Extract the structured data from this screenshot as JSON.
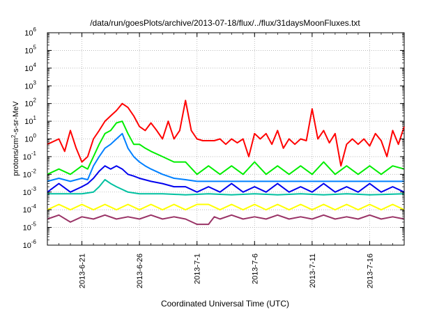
{
  "chart_data": {
    "type": "line",
    "title": "/data/run/goesPlots/archive/2013-07-18/flux/../flux/31daysMoonFluxes.txt",
    "xlabel": "Coordinated Universal Time (UTC)",
    "ylabel": {
      "pre": "protons/cm",
      "sup": "2",
      "post": "-s-sr-MeV"
    },
    "yscale": "log",
    "x_range": [
      "2013-06-18",
      "2013-07-19"
    ],
    "ylim_exponents": [
      -6,
      6
    ],
    "y_ticks": [
      {
        "base": "10",
        "exp": "-6"
      },
      {
        "base": "10",
        "exp": "-5"
      },
      {
        "base": "10",
        "exp": "-4"
      },
      {
        "base": "10",
        "exp": "-3"
      },
      {
        "base": "10",
        "exp": "-2"
      },
      {
        "base": "10",
        "exp": "-1"
      },
      {
        "base": "10",
        "exp": "0"
      },
      {
        "base": "10",
        "exp": "1"
      },
      {
        "base": "10",
        "exp": "2"
      },
      {
        "base": "10",
        "exp": "3"
      },
      {
        "base": "10",
        "exp": "4"
      },
      {
        "base": "10",
        "exp": "5"
      },
      {
        "base": "10",
        "exp": "6"
      }
    ],
    "x_ticks": [
      {
        "date": "2013-06-21",
        "label": "2013-6-21"
      },
      {
        "date": "2013-06-26",
        "label": "2013-6-26"
      },
      {
        "date": "2013-07-01",
        "label": "2013-7-1"
      },
      {
        "date": "2013-07-06",
        "label": "2013-7-6"
      },
      {
        "date": "2013-07-11",
        "label": "2013-7-11"
      },
      {
        "date": "2013-07-16",
        "label": "2013-7-16"
      }
    ],
    "grid": true,
    "series": [
      {
        "color": "#ff0000",
        "points": [
          [
            "2013-06-18",
            0.5
          ],
          [
            "2013-06-19",
            1.0
          ],
          [
            "2013-06-19T12",
            0.2
          ],
          [
            "2013-06-20",
            3
          ],
          [
            "2013-06-20T12",
            0.3
          ],
          [
            "2013-06-21",
            0.05
          ],
          [
            "2013-06-21T12",
            0.1
          ],
          [
            "2013-06-22",
            1
          ],
          [
            "2013-06-22T12",
            3
          ],
          [
            "2013-06-23",
            10
          ],
          [
            "2013-06-23T12",
            20
          ],
          [
            "2013-06-24",
            40
          ],
          [
            "2013-06-24T12",
            100
          ],
          [
            "2013-06-25",
            60
          ],
          [
            "2013-06-25T12",
            20
          ],
          [
            "2013-06-26",
            5
          ],
          [
            "2013-06-26T12",
            3
          ],
          [
            "2013-06-27",
            8
          ],
          [
            "2013-06-27T12",
            3
          ],
          [
            "2013-06-28",
            1
          ],
          [
            "2013-06-28T12",
            10
          ],
          [
            "2013-06-29",
            1
          ],
          [
            "2013-06-29T12",
            3
          ],
          [
            "2013-06-30",
            150
          ],
          [
            "2013-06-30T12",
            3
          ],
          [
            "2013-07-01",
            1
          ],
          [
            "2013-07-01T12",
            0.8
          ],
          [
            "2013-07-02",
            0.8
          ],
          [
            "2013-07-02T12",
            0.8
          ],
          [
            "2013-07-03",
            1
          ],
          [
            "2013-07-03T12",
            0.5
          ],
          [
            "2013-07-04",
            1
          ],
          [
            "2013-07-04T12",
            0.6
          ],
          [
            "2013-07-05",
            1
          ],
          [
            "2013-07-05T12",
            0.1
          ],
          [
            "2013-07-06",
            2
          ],
          [
            "2013-07-06T12",
            1
          ],
          [
            "2013-07-07",
            2
          ],
          [
            "2013-07-07T12",
            0.5
          ],
          [
            "2013-07-08",
            3
          ],
          [
            "2013-07-08T12",
            0.3
          ],
          [
            "2013-07-09",
            1
          ],
          [
            "2013-07-09T12",
            0.5
          ],
          [
            "2013-07-10",
            1
          ],
          [
            "2013-07-10T12",
            0.8
          ],
          [
            "2013-07-11",
            50
          ],
          [
            "2013-07-11T12",
            1
          ],
          [
            "2013-07-12",
            3
          ],
          [
            "2013-07-12T12",
            0.6
          ],
          [
            "2013-07-13",
            2
          ],
          [
            "2013-07-13T12",
            0.03
          ],
          [
            "2013-07-14",
            0.5
          ],
          [
            "2013-07-14T12",
            1
          ],
          [
            "2013-07-15",
            0.5
          ],
          [
            "2013-07-15T12",
            1
          ],
          [
            "2013-07-16",
            0.4
          ],
          [
            "2013-07-16T12",
            2
          ],
          [
            "2013-07-17",
            0.8
          ],
          [
            "2013-07-17T12",
            0.1
          ],
          [
            "2013-07-18",
            3
          ],
          [
            "2013-07-18T12",
            0.5
          ],
          [
            "2013-07-19",
            5
          ]
        ]
      },
      {
        "color": "#00ee00",
        "points": [
          [
            "2013-06-18",
            0.01
          ],
          [
            "2013-06-19",
            0.02
          ],
          [
            "2013-06-20",
            0.01
          ],
          [
            "2013-06-21",
            0.03
          ],
          [
            "2013-06-21T12",
            0.02
          ],
          [
            "2013-06-22",
            0.1
          ],
          [
            "2013-06-22T12",
            0.5
          ],
          [
            "2013-06-23",
            2
          ],
          [
            "2013-06-23T12",
            3
          ],
          [
            "2013-06-24",
            8
          ],
          [
            "2013-06-24T12",
            10
          ],
          [
            "2013-06-25",
            2
          ],
          [
            "2013-06-25T12",
            0.5
          ],
          [
            "2013-06-26",
            0.5
          ],
          [
            "2013-06-26T12",
            0.3
          ],
          [
            "2013-06-27",
            0.2
          ],
          [
            "2013-06-28",
            0.1
          ],
          [
            "2013-06-29",
            0.05
          ],
          [
            "2013-06-30",
            0.05
          ],
          [
            "2013-07-01",
            0.01
          ],
          [
            "2013-07-02",
            0.03
          ],
          [
            "2013-07-03",
            0.01
          ],
          [
            "2013-07-04",
            0.03
          ],
          [
            "2013-07-05",
            0.01
          ],
          [
            "2013-07-06",
            0.05
          ],
          [
            "2013-07-07",
            0.01
          ],
          [
            "2013-07-08",
            0.03
          ],
          [
            "2013-07-09",
            0.01
          ],
          [
            "2013-07-10",
            0.03
          ],
          [
            "2013-07-11",
            0.01
          ],
          [
            "2013-07-12",
            0.05
          ],
          [
            "2013-07-13",
            0.01
          ],
          [
            "2013-07-14",
            0.03
          ],
          [
            "2013-07-15",
            0.01
          ],
          [
            "2013-07-16",
            0.03
          ],
          [
            "2013-07-17",
            0.01
          ],
          [
            "2013-07-18",
            0.03
          ],
          [
            "2013-07-19",
            0.02
          ]
        ]
      },
      {
        "color": "#0080ff",
        "points": [
          [
            "2013-06-18",
            0.004
          ],
          [
            "2013-06-19",
            0.006
          ],
          [
            "2013-06-20",
            0.004
          ],
          [
            "2013-06-21",
            0.006
          ],
          [
            "2013-06-21T12",
            0.005
          ],
          [
            "2013-06-22",
            0.03
          ],
          [
            "2013-06-22T12",
            0.1
          ],
          [
            "2013-06-23",
            0.3
          ],
          [
            "2013-06-23T12",
            0.5
          ],
          [
            "2013-06-24",
            1
          ],
          [
            "2013-06-24T12",
            2
          ],
          [
            "2013-06-25",
            0.3
          ],
          [
            "2013-06-25T12",
            0.1
          ],
          [
            "2013-06-26",
            0.05
          ],
          [
            "2013-06-26T12",
            0.03
          ],
          [
            "2013-06-27",
            0.02
          ],
          [
            "2013-06-28",
            0.01
          ],
          [
            "2013-06-29",
            0.006
          ],
          [
            "2013-06-30",
            0.005
          ],
          [
            "2013-07-01",
            0.004
          ],
          [
            "2013-07-02",
            0.004
          ],
          [
            "2013-07-03",
            0.004
          ],
          [
            "2013-07-05",
            0.004
          ],
          [
            "2013-07-07",
            0.004
          ],
          [
            "2013-07-09",
            0.004
          ],
          [
            "2013-07-11",
            0.004
          ],
          [
            "2013-07-13",
            0.004
          ],
          [
            "2013-07-15",
            0.004
          ],
          [
            "2013-07-17",
            0.004
          ],
          [
            "2013-07-19",
            0.004
          ]
        ]
      },
      {
        "color": "#0000ee",
        "points": [
          [
            "2013-06-18",
            0.001
          ],
          [
            "2013-06-19",
            0.003
          ],
          [
            "2013-06-20",
            0.001
          ],
          [
            "2013-06-21",
            0.002
          ],
          [
            "2013-06-21T12",
            0.003
          ],
          [
            "2013-06-22",
            0.006
          ],
          [
            "2013-06-22T12",
            0.015
          ],
          [
            "2013-06-23",
            0.03
          ],
          [
            "2013-06-23T12",
            0.02
          ],
          [
            "2013-06-24",
            0.03
          ],
          [
            "2013-06-24T12",
            0.02
          ],
          [
            "2013-06-25",
            0.01
          ],
          [
            "2013-06-25T12",
            0.008
          ],
          [
            "2013-06-26",
            0.006
          ],
          [
            "2013-06-27",
            0.004
          ],
          [
            "2013-06-28",
            0.003
          ],
          [
            "2013-06-29",
            0.002
          ],
          [
            "2013-06-30",
            0.002
          ],
          [
            "2013-07-01",
            0.001
          ],
          [
            "2013-07-02",
            0.002
          ],
          [
            "2013-07-03",
            0.001
          ],
          [
            "2013-07-04",
            0.003
          ],
          [
            "2013-07-05",
            0.001
          ],
          [
            "2013-07-06",
            0.002
          ],
          [
            "2013-07-07",
            0.001
          ],
          [
            "2013-07-08",
            0.003
          ],
          [
            "2013-07-09",
            0.001
          ],
          [
            "2013-07-10",
            0.002
          ],
          [
            "2013-07-11",
            0.001
          ],
          [
            "2013-07-12",
            0.003
          ],
          [
            "2013-07-13",
            0.001
          ],
          [
            "2013-07-14",
            0.002
          ],
          [
            "2013-07-15",
            0.001
          ],
          [
            "2013-07-16",
            0.003
          ],
          [
            "2013-07-17",
            0.001
          ],
          [
            "2013-07-18",
            0.002
          ],
          [
            "2013-07-19",
            0.001
          ]
        ]
      },
      {
        "color": "#00c0a0",
        "points": [
          [
            "2013-06-18",
            0.0008
          ],
          [
            "2013-06-20",
            0.0008
          ],
          [
            "2013-06-21",
            0.0008
          ],
          [
            "2013-06-22",
            0.001
          ],
          [
            "2013-06-22T12",
            0.002
          ],
          [
            "2013-06-23",
            0.005
          ],
          [
            "2013-06-23T12",
            0.003
          ],
          [
            "2013-06-24",
            0.002
          ],
          [
            "2013-06-25",
            0.001
          ],
          [
            "2013-06-26",
            0.0008
          ],
          [
            "2013-06-28",
            0.0008
          ],
          [
            "2013-06-30",
            0.0007
          ],
          [
            "2013-07-02",
            0.0008
          ],
          [
            "2013-07-04",
            0.0007
          ],
          [
            "2013-07-06",
            0.0008
          ],
          [
            "2013-07-08",
            0.0007
          ],
          [
            "2013-07-10",
            0.0008
          ],
          [
            "2013-07-12",
            0.0007
          ],
          [
            "2013-07-14",
            0.0008
          ],
          [
            "2013-07-16",
            0.0007
          ],
          [
            "2013-07-19",
            0.0008
          ]
        ]
      },
      {
        "color": "#ffff00",
        "points": [
          [
            "2013-06-18",
            0.0001
          ],
          [
            "2013-06-19",
            0.0002
          ],
          [
            "2013-06-20",
            0.0001
          ],
          [
            "2013-06-21",
            0.0002
          ],
          [
            "2013-06-22",
            0.0001
          ],
          [
            "2013-06-23",
            0.0002
          ],
          [
            "2013-06-24",
            0.0001
          ],
          [
            "2013-06-25",
            0.0002
          ],
          [
            "2013-06-26",
            0.0001
          ],
          [
            "2013-06-27",
            0.0002
          ],
          [
            "2013-06-28",
            0.0001
          ],
          [
            "2013-06-29",
            0.0002
          ],
          [
            "2013-06-30",
            0.0001
          ],
          [
            "2013-07-01",
            0.0002
          ],
          [
            "2013-07-02",
            0.0002
          ],
          [
            "2013-07-03",
            0.0001
          ],
          [
            "2013-07-04",
            0.0002
          ],
          [
            "2013-07-05",
            0.0001
          ],
          [
            "2013-07-06",
            0.0002
          ],
          [
            "2013-07-07",
            0.0001
          ],
          [
            "2013-07-08",
            0.0002
          ],
          [
            "2013-07-09",
            0.0001
          ],
          [
            "2013-07-10",
            0.0002
          ],
          [
            "2013-07-11",
            0.0001
          ],
          [
            "2013-07-12",
            0.0002
          ],
          [
            "2013-07-13",
            0.0001
          ],
          [
            "2013-07-14",
            0.0002
          ],
          [
            "2013-07-15",
            0.0001
          ],
          [
            "2013-07-16",
            0.0002
          ],
          [
            "2013-07-17",
            0.0001
          ],
          [
            "2013-07-18",
            0.0002
          ],
          [
            "2013-07-19",
            0.0001
          ]
        ]
      },
      {
        "color": "#993366",
        "points": [
          [
            "2013-06-18",
            3e-05
          ],
          [
            "2013-06-19",
            5e-05
          ],
          [
            "2013-06-20",
            2e-05
          ],
          [
            "2013-06-21",
            4e-05
          ],
          [
            "2013-06-22",
            3e-05
          ],
          [
            "2013-06-23",
            5e-05
          ],
          [
            "2013-06-24",
            3e-05
          ],
          [
            "2013-06-25",
            4e-05
          ],
          [
            "2013-06-26",
            3e-05
          ],
          [
            "2013-06-27",
            5e-05
          ],
          [
            "2013-06-28",
            3e-05
          ],
          [
            "2013-06-29",
            4e-05
          ],
          [
            "2013-06-30",
            3e-05
          ],
          [
            "2013-07-01",
            1.5e-05
          ],
          [
            "2013-07-02",
            1.5e-05
          ],
          [
            "2013-07-02T12",
            4e-05
          ],
          [
            "2013-07-03",
            3e-05
          ],
          [
            "2013-07-04",
            5e-05
          ],
          [
            "2013-07-05",
            3e-05
          ],
          [
            "2013-07-06",
            4e-05
          ],
          [
            "2013-07-07",
            3e-05
          ],
          [
            "2013-07-08",
            5e-05
          ],
          [
            "2013-07-09",
            3e-05
          ],
          [
            "2013-07-10",
            4e-05
          ],
          [
            "2013-07-11",
            3e-05
          ],
          [
            "2013-07-12",
            5e-05
          ],
          [
            "2013-07-13",
            3e-05
          ],
          [
            "2013-07-14",
            4e-05
          ],
          [
            "2013-07-15",
            3e-05
          ],
          [
            "2013-07-16",
            5e-05
          ],
          [
            "2013-07-17",
            3e-05
          ],
          [
            "2013-07-18",
            4e-05
          ],
          [
            "2013-07-19",
            3e-05
          ]
        ]
      }
    ]
  }
}
